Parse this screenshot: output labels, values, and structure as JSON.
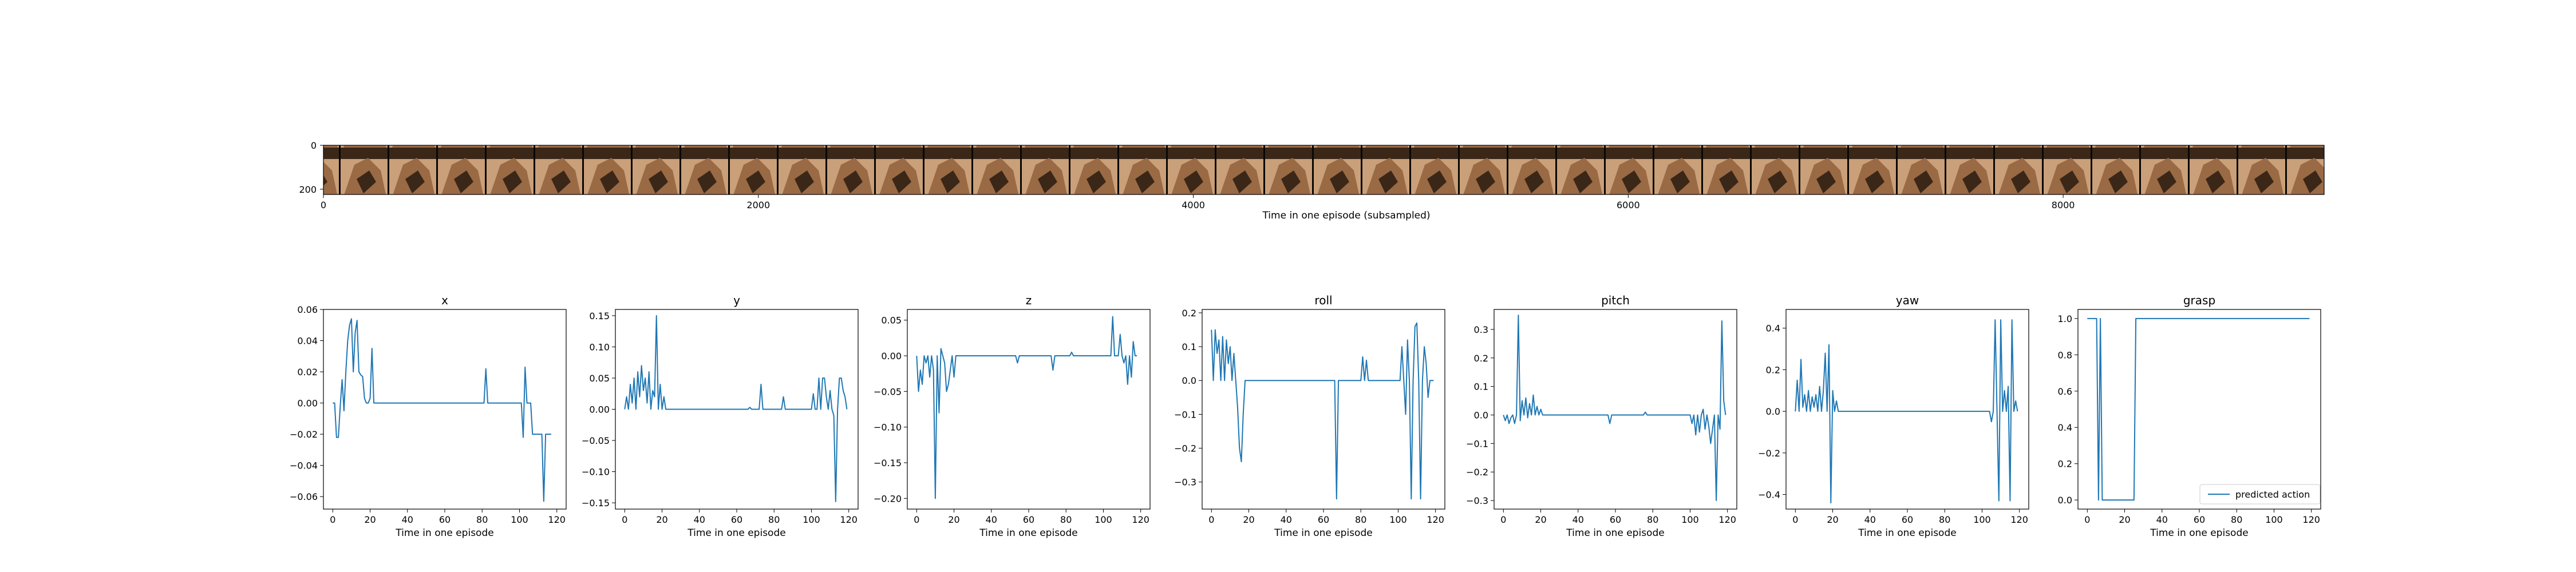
{
  "strip": {
    "xlabel": "Time in one episode (subsampled)",
    "xticks": [
      0,
      2000,
      4000,
      6000,
      8000
    ],
    "yticks": [
      0,
      200
    ],
    "xlim": [
      0,
      9200
    ],
    "ylim": [
      0,
      224
    ],
    "frame_count": 41,
    "frame_colors": {
      "light": "#c9a079",
      "mid": "#9a6a45",
      "dark": "#3a2718",
      "black": "#0a0705"
    }
  },
  "line_color": "#1f77b4",
  "chart_data": [
    {
      "type": "line",
      "title": "x",
      "xlabel": "Time in one episode",
      "xlim": [
        -5,
        125
      ],
      "ylim": [
        -0.068,
        0.06
      ],
      "xticks": [
        0,
        20,
        40,
        60,
        80,
        100,
        120
      ],
      "yticks": [
        0.06,
        0.04,
        0.02,
        0.0,
        -0.02,
        -0.04,
        -0.06
      ],
      "ytick_labels": [
        "0.06",
        "0.04",
        "0.02",
        "0.00",
        "−0.02",
        "−0.04",
        "−0.06"
      ],
      "x": [
        0,
        1,
        2,
        3,
        4,
        5,
        6,
        7,
        8,
        9,
        10,
        11,
        12,
        13,
        14,
        15,
        16,
        17,
        18,
        19,
        20,
        21,
        22,
        23,
        24,
        25,
        26,
        27,
        28,
        29,
        30,
        40,
        50,
        60,
        70,
        80,
        81,
        82,
        83,
        84,
        90,
        100,
        101,
        102,
        103,
        104,
        105,
        106,
        107,
        108,
        109,
        110,
        111,
        112,
        113,
        114,
        115,
        116,
        117
      ],
      "y": [
        0.0,
        0.0,
        -0.022,
        -0.022,
        -0.002,
        0.015,
        -0.005,
        0.02,
        0.04,
        0.05,
        0.054,
        0.02,
        0.045,
        0.053,
        0.02,
        0.018,
        0.017,
        0.003,
        0.0,
        0.0,
        0.003,
        0.035,
        0.0,
        0.0,
        0.0,
        0.0,
        0.0,
        0.0,
        0.0,
        0.0,
        0.0,
        0.0,
        0.0,
        0.0,
        0.0,
        0.0,
        0.0,
        0.022,
        0.0,
        0.0,
        0.0,
        0.0,
        0.0,
        -0.022,
        0.023,
        0.0,
        0.0,
        0.0,
        -0.02,
        -0.02,
        -0.02,
        -0.02,
        -0.02,
        -0.02,
        -0.063,
        -0.02,
        -0.02,
        -0.02,
        -0.02
      ]
    },
    {
      "type": "line",
      "title": "y",
      "xlabel": "Time in one episode",
      "xlim": [
        -5,
        125
      ],
      "ylim": [
        -0.16,
        0.16
      ],
      "xticks": [
        0,
        20,
        40,
        60,
        80,
        100,
        120
      ],
      "yticks": [
        0.15,
        0.1,
        0.05,
        0.0,
        -0.05,
        -0.1,
        -0.15
      ],
      "ytick_labels": [
        "0.15",
        "0.10",
        "0.05",
        "0.00",
        "−0.05",
        "−0.10",
        "−0.15"
      ],
      "x": [
        0,
        1,
        2,
        3,
        4,
        5,
        6,
        7,
        8,
        9,
        10,
        11,
        12,
        13,
        14,
        15,
        16,
        17,
        18,
        19,
        20,
        21,
        22,
        23,
        24,
        30,
        40,
        50,
        60,
        66,
        67,
        68,
        70,
        72,
        73,
        74,
        75,
        76,
        78,
        80,
        84,
        85,
        86,
        88,
        90,
        100,
        101,
        102,
        103,
        104,
        105,
        106,
        107,
        108,
        109,
        110,
        111,
        112,
        113,
        114,
        115,
        116,
        117,
        118,
        119
      ],
      "y": [
        0.0,
        0.02,
        0.0,
        0.04,
        0.01,
        0.05,
        0.0,
        0.06,
        0.02,
        0.07,
        0.03,
        0.05,
        0.01,
        0.06,
        0.0,
        0.03,
        0.02,
        0.15,
        0.0,
        0.04,
        0.0,
        0.02,
        0.0,
        0.0,
        0.0,
        0.0,
        0.0,
        0.0,
        0.0,
        0.0,
        0.003,
        0.0,
        0.0,
        0.0,
        0.04,
        0.0,
        0.0,
        0.0,
        0.0,
        0.0,
        0.0,
        0.02,
        0.0,
        0.0,
        0.0,
        0.0,
        0.025,
        0.0,
        0.0,
        0.05,
        0.0,
        0.05,
        0.05,
        0.02,
        0.0,
        0.03,
        0.0,
        -0.01,
        -0.148,
        0.0,
        0.05,
        0.05,
        0.03,
        0.02,
        0.0
      ]
    },
    {
      "type": "line",
      "title": "z",
      "xlabel": "Time in one episode",
      "xlim": [
        -5,
        125
      ],
      "ylim": [
        -0.215,
        0.065
      ],
      "xticks": [
        0,
        20,
        40,
        60,
        80,
        100,
        120
      ],
      "yticks": [
        0.05,
        0.0,
        -0.05,
        -0.1,
        -0.15,
        -0.2
      ],
      "ytick_labels": [
        "0.05",
        "0.00",
        "−0.05",
        "−0.10",
        "−0.15",
        "−0.20"
      ],
      "x": [
        0,
        1,
        2,
        3,
        4,
        5,
        6,
        7,
        8,
        9,
        10,
        11,
        12,
        13,
        14,
        15,
        16,
        17,
        18,
        19,
        20,
        21,
        22,
        23,
        24,
        25,
        30,
        40,
        50,
        53,
        54,
        55,
        60,
        70,
        72,
        73,
        74,
        80,
        82,
        83,
        84,
        90,
        100,
        102,
        103,
        104,
        105,
        106,
        107,
        108,
        109,
        110,
        111,
        112,
        113,
        114,
        115,
        116,
        117,
        118
      ],
      "y": [
        0.0,
        -0.05,
        -0.02,
        -0.04,
        0.0,
        -0.01,
        0.0,
        -0.03,
        0.0,
        -0.02,
        -0.2,
        0.0,
        -0.08,
        0.01,
        0.0,
        -0.01,
        -0.05,
        -0.04,
        -0.02,
        0.0,
        -0.03,
        0.0,
        0.0,
        0.0,
        0.0,
        0.0,
        0.0,
        0.0,
        0.0,
        0.0,
        -0.01,
        0.0,
        0.0,
        0.0,
        0.0,
        -0.02,
        0.0,
        0.0,
        0.0,
        0.005,
        0.0,
        0.0,
        0.0,
        0.0,
        0.0,
        0.0,
        0.055,
        0.0,
        0.0,
        0.0,
        0.03,
        0.0,
        -0.01,
        0.0,
        -0.04,
        0.0,
        -0.03,
        0.02,
        0.0,
        0.0
      ]
    },
    {
      "type": "line",
      "title": "roll",
      "xlabel": "Time in one episode",
      "xlim": [
        -5,
        125
      ],
      "ylim": [
        -0.38,
        0.21
      ],
      "xticks": [
        0,
        20,
        40,
        60,
        80,
        100,
        120
      ],
      "yticks": [
        0.2,
        0.1,
        0.0,
        -0.1,
        -0.2,
        -0.3
      ],
      "ytick_labels": [
        "0.2",
        "0.1",
        "0.0",
        "−0.1",
        "−0.2",
        "−0.3"
      ],
      "x": [
        0,
        1,
        2,
        3,
        4,
        5,
        6,
        7,
        8,
        9,
        10,
        11,
        12,
        13,
        14,
        15,
        16,
        17,
        18,
        19,
        20,
        21,
        22,
        23,
        24,
        30,
        40,
        50,
        60,
        64,
        65,
        66,
        67,
        68,
        70,
        80,
        81,
        82,
        83,
        84,
        90,
        100,
        101,
        102,
        103,
        104,
        105,
        106,
        107,
        108,
        109,
        110,
        111,
        112,
        113,
        114,
        115,
        116,
        117,
        118,
        119
      ],
      "y": [
        0.15,
        0.0,
        0.15,
        0.08,
        0.12,
        0.0,
        0.13,
        0.0,
        0.12,
        0.05,
        0.1,
        0.0,
        0.08,
        0.0,
        -0.08,
        -0.2,
        -0.24,
        -0.1,
        0.0,
        0.0,
        0.0,
        0.0,
        0.0,
        0.0,
        0.0,
        0.0,
        0.0,
        0.0,
        0.0,
        0.0,
        0.0,
        0.0,
        -0.35,
        0.0,
        0.0,
        0.0,
        0.07,
        0.0,
        0.06,
        0.0,
        0.0,
        0.0,
        0.0,
        0.1,
        0.0,
        -0.1,
        0.12,
        0.0,
        -0.35,
        0.0,
        0.16,
        0.17,
        0.0,
        -0.35,
        0.0,
        0.1,
        0.05,
        -0.05,
        0.0,
        0.0,
        0.0
      ]
    },
    {
      "type": "line",
      "title": "pitch",
      "xlabel": "Time in one episode",
      "xlim": [
        -5,
        125
      ],
      "ylim": [
        -0.33,
        0.37
      ],
      "xticks": [
        0,
        20,
        40,
        60,
        80,
        100,
        120
      ],
      "yticks": [
        0.3,
        0.2,
        0.1,
        0.0,
        -0.1,
        -0.2,
        -0.3
      ],
      "ytick_labels": [
        "0.3",
        "0.2",
        "0.1",
        "0.0",
        "−0.1",
        "−0.2",
        "−0.3"
      ],
      "x": [
        0,
        1,
        2,
        3,
        4,
        5,
        6,
        7,
        8,
        9,
        10,
        11,
        12,
        13,
        14,
        15,
        16,
        17,
        18,
        19,
        20,
        21,
        22,
        23,
        24,
        25,
        30,
        40,
        50,
        56,
        57,
        58,
        60,
        70,
        75,
        76,
        77,
        80,
        90,
        100,
        101,
        102,
        103,
        104,
        105,
        106,
        107,
        108,
        109,
        110,
        111,
        112,
        113,
        114,
        115,
        116,
        117,
        118,
        119
      ],
      "y": [
        0.0,
        -0.02,
        0.0,
        -0.03,
        -0.01,
        0.0,
        -0.03,
        0.0,
        0.35,
        -0.02,
        0.05,
        0.0,
        0.06,
        -0.01,
        0.04,
        0.0,
        0.07,
        0.0,
        0.03,
        0.0,
        0.02,
        0.0,
        0.0,
        0.0,
        0.0,
        0.0,
        0.0,
        0.0,
        0.0,
        0.0,
        -0.03,
        0.0,
        0.0,
        0.0,
        0.0,
        0.01,
        0.0,
        0.0,
        0.0,
        0.0,
        -0.03,
        0.0,
        -0.07,
        0.0,
        -0.06,
        0.0,
        0.02,
        -0.05,
        0.0,
        -0.04,
        -0.1,
        -0.05,
        0.0,
        -0.3,
        0.0,
        -0.05,
        0.33,
        0.05,
        0.0
      ]
    },
    {
      "type": "line",
      "title": "yaw",
      "xlabel": "Time in one episode",
      "xlim": [
        -5,
        125
      ],
      "ylim": [
        -0.47,
        0.49
      ],
      "xticks": [
        0,
        20,
        40,
        60,
        80,
        100,
        120
      ],
      "yticks": [
        0.4,
        0.2,
        0.0,
        -0.2,
        -0.4
      ],
      "ytick_labels": [
        "0.4",
        "0.2",
        "0.0",
        "−0.2",
        "−0.4"
      ],
      "x": [
        0,
        1,
        2,
        3,
        4,
        5,
        6,
        7,
        8,
        9,
        10,
        11,
        12,
        13,
        14,
        15,
        16,
        17,
        18,
        19,
        20,
        21,
        22,
        23,
        24,
        25,
        30,
        40,
        50,
        60,
        70,
        80,
        90,
        100,
        101,
        102,
        103,
        104,
        105,
        106,
        107,
        108,
        109,
        110,
        111,
        112,
        113,
        114,
        115,
        116,
        117,
        118,
        119
      ],
      "y": [
        0.0,
        0.15,
        0.0,
        0.25,
        0.02,
        0.08,
        0.0,
        0.1,
        0.0,
        0.07,
        0.02,
        0.08,
        0.0,
        0.12,
        0.0,
        0.1,
        0.28,
        0.0,
        0.32,
        -0.44,
        0.1,
        0.0,
        0.05,
        0.0,
        0.0,
        0.0,
        0.0,
        0.0,
        0.0,
        0.0,
        0.0,
        0.0,
        0.0,
        0.0,
        0.0,
        0.0,
        0.0,
        0.0,
        -0.05,
        0.0,
        0.44,
        0.0,
        -0.43,
        0.44,
        0.0,
        0.1,
        0.0,
        0.12,
        -0.43,
        0.44,
        0.0,
        0.05,
        0.0
      ]
    },
    {
      "type": "line",
      "title": "grasp",
      "xlabel": "Time in one episode",
      "xlim": [
        -5,
        125
      ],
      "ylim": [
        -0.05,
        1.05
      ],
      "xticks": [
        0,
        20,
        40,
        60,
        80,
        100,
        120
      ],
      "yticks": [
        1.0,
        0.8,
        0.6,
        0.4,
        0.2,
        0.0
      ],
      "ytick_labels": [
        "1.0",
        "0.8",
        "0.6",
        "0.4",
        "0.2",
        "0.0"
      ],
      "legend": "predicted action",
      "legend_loc": "lower-right",
      "x": [
        0,
        1,
        2,
        3,
        4,
        5,
        6,
        7,
        8,
        9,
        10,
        11,
        12,
        13,
        14,
        15,
        16,
        17,
        18,
        19,
        20,
        21,
        22,
        23,
        24,
        25,
        26,
        27,
        30,
        40,
        50,
        60,
        70,
        80,
        90,
        100,
        110,
        115,
        119
      ],
      "y": [
        1,
        1,
        1,
        1,
        1,
        1,
        0,
        1,
        0,
        0,
        0,
        0,
        0,
        0,
        0,
        0,
        0,
        0,
        0,
        0,
        0,
        0,
        0,
        0,
        0,
        0,
        1,
        1,
        1,
        1,
        1,
        1,
        1,
        1,
        1,
        1,
        1,
        1,
        1
      ]
    }
  ]
}
